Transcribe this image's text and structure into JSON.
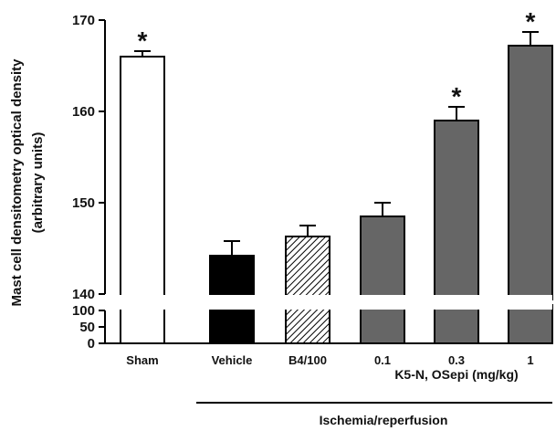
{
  "chart_data": {
    "type": "bar",
    "ylabel_line1": "Mast cell densitometry optical density",
    "ylabel_line2": "(arbitrary units)",
    "upper_axis": {
      "ylim": [
        140,
        170
      ],
      "ticks": [
        140,
        150,
        160,
        170
      ]
    },
    "lower_axis": {
      "ylim": [
        0,
        100
      ],
      "ticks": [
        0,
        50,
        100
      ]
    },
    "axis_break": true,
    "categories": [
      "Sham",
      "Vehicle",
      "B4/100",
      "0.1",
      "0.3",
      "1"
    ],
    "values": [
      166,
      144.2,
      146.3,
      148.5,
      159,
      167.2
    ],
    "errors": [
      0.6,
      1.6,
      1.2,
      1.5,
      1.5,
      1.5
    ],
    "fills": [
      "white",
      "black",
      "hatched",
      "gray",
      "gray",
      "gray"
    ],
    "significant": [
      true,
      false,
      false,
      false,
      true,
      true
    ],
    "significance_symbol": "*",
    "group_label_dose": "K5-N, OSepi (mg/kg)",
    "group_label_condition": "Ischemia/reperfusion",
    "colors": {
      "gray_fill": "#666666",
      "black_fill": "#000000",
      "white_fill": "#ffffff",
      "stroke": "#000000"
    },
    "grid": false,
    "legend": "none"
  }
}
